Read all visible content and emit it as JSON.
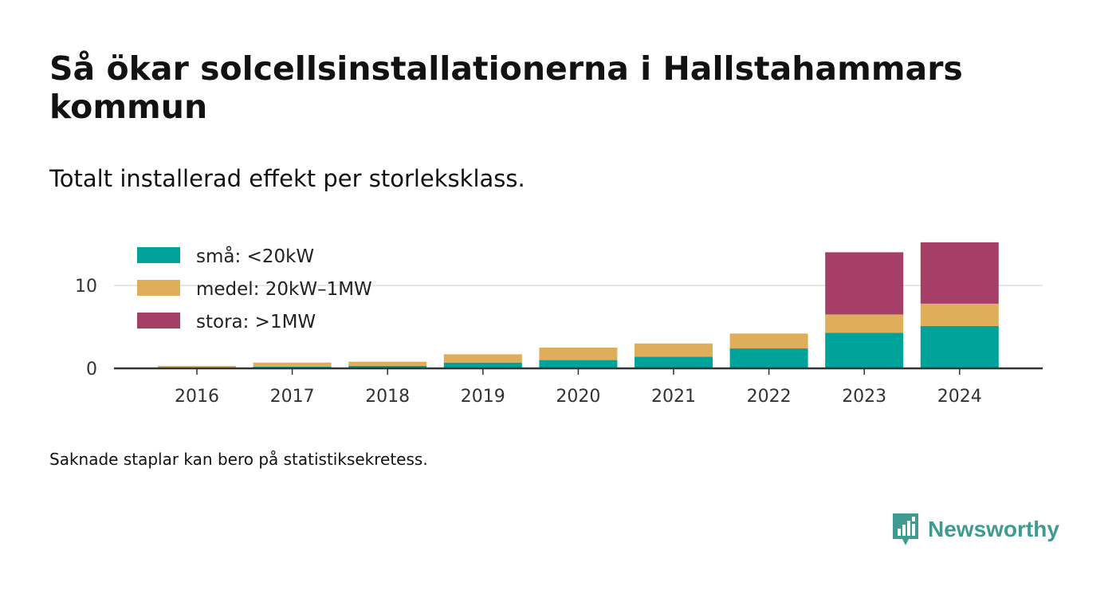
{
  "header": {
    "title": "Så ökar solcellsinstallationerna i Hallstahammars kommun",
    "subtitle": "Totalt installerad effekt per storleksklass."
  },
  "footnote": "Saknade staplar kan bero på statistiksekretess.",
  "brand": {
    "name": "Newsworthy",
    "icon": "newsworthy-logo-icon",
    "color": "#3f9a92"
  },
  "chart_data": {
    "type": "bar",
    "stacked": true,
    "categories": [
      "2016",
      "2017",
      "2018",
      "2019",
      "2020",
      "2021",
      "2022",
      "2023",
      "2024"
    ],
    "series": [
      {
        "name": "små: <20kW",
        "color": "#00a39a",
        "values": [
          0.1,
          0.2,
          0.3,
          0.7,
          1.0,
          1.4,
          2.4,
          4.3,
          5.1
        ]
      },
      {
        "name": "medel: 20kW–1MW",
        "color": "#dfae5b",
        "values": [
          0.2,
          0.5,
          0.5,
          1.0,
          1.5,
          1.6,
          1.8,
          2.2,
          2.7
        ]
      },
      {
        "name": "stora: >1MW",
        "color": "#a53f67",
        "values": [
          0,
          0,
          0,
          0,
          0,
          0,
          0,
          7.5,
          7.4
        ]
      }
    ],
    "y_ticks": [
      0,
      10
    ],
    "ylim": [
      0,
      15.5
    ],
    "grid": true,
    "legend": "top-left",
    "xlabel": "",
    "ylabel": ""
  }
}
